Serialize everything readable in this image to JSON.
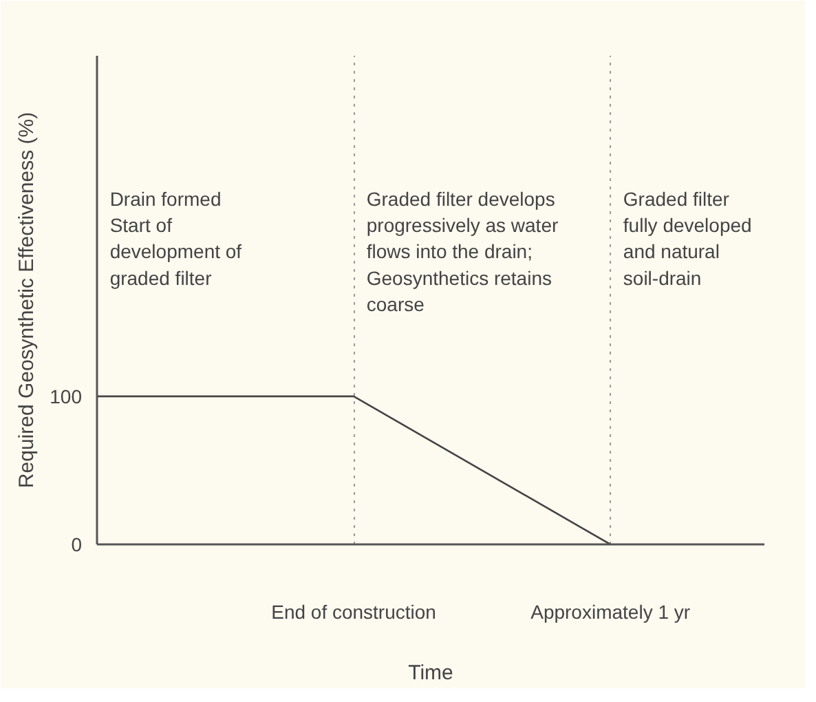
{
  "chart_data": {
    "type": "line",
    "xlabel": "Time",
    "ylabel": "Required Geosynthetic Effectiveness (%)",
    "categories": [
      null,
      "End of construction",
      "Approximately 1 yr"
    ],
    "series": [
      {
        "color": "#444444",
        "values": [
          100,
          100,
          0
        ]
      }
    ],
    "ylim": [
      0,
      330
    ],
    "yticks": [
      0,
      100
    ],
    "annotations": [
      "Drain formed\nStart of\ndevelopment of\ngraded filter",
      "Graded filter develops\nprogressively as water\nflows into the drain;\nGeosynthetics retains\ncoarse",
      "Graded filter\nfully developed\nand natural\nsoil-drain"
    ],
    "grid": "x",
    "marker": "none",
    "line_style": "solid"
  }
}
